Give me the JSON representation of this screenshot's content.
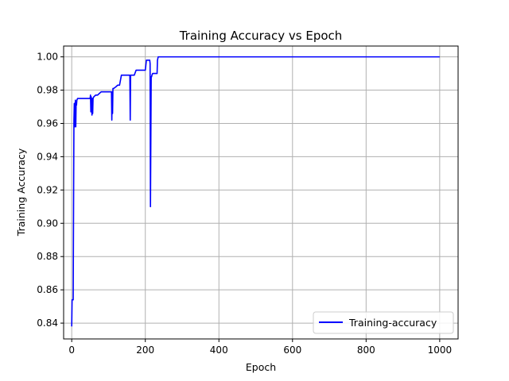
{
  "chart_data": {
    "type": "line",
    "title": "Training Accuracy vs Epoch",
    "xlabel": "Epoch",
    "ylabel": "Training Accuracy",
    "xlim": [
      -22,
      1050
    ],
    "ylim": [
      0.8305,
      1.0065
    ],
    "xticks": [
      0,
      200,
      400,
      600,
      800,
      1000
    ],
    "yticks": [
      0.84,
      0.86,
      0.88,
      0.9,
      0.92,
      0.94,
      0.96,
      0.98,
      1.0
    ],
    "xtick_labels": [
      "0",
      "200",
      "400",
      "600",
      "800",
      "1000"
    ],
    "ytick_labels": [
      "0.84",
      "0.86",
      "0.88",
      "0.90",
      "0.92",
      "0.94",
      "0.96",
      "0.98",
      "1.00"
    ],
    "grid": true,
    "legend_position": "lower-right",
    "series": [
      {
        "name": "Training-accuracy",
        "color": "#0000ff",
        "x": [
          0,
          1,
          2,
          4,
          5,
          6,
          7,
          8,
          9,
          10,
          11,
          12,
          13,
          14,
          16,
          20,
          30,
          40,
          50,
          51,
          52,
          53,
          55,
          56,
          57,
          58,
          60,
          65,
          70,
          80,
          90,
          100,
          105,
          108,
          109,
          110,
          111,
          112,
          113,
          114,
          120,
          125,
          130,
          135,
          140,
          150,
          155,
          158,
          159,
          160,
          161,
          162,
          163,
          170,
          175,
          180,
          190,
          200,
          203,
          205,
          210,
          212,
          213,
          214,
          215,
          216,
          217,
          218,
          220,
          225,
          230,
          232,
          233,
          235,
          240,
          300,
          400,
          500,
          600,
          700,
          800,
          900,
          1000
        ],
        "y": [
          0.838,
          0.854,
          0.854,
          0.854,
          0.91,
          0.962,
          0.972,
          0.958,
          0.969,
          0.974,
          0.958,
          0.972,
          0.971,
          0.974,
          0.975,
          0.975,
          0.975,
          0.975,
          0.975,
          0.977,
          0.967,
          0.976,
          0.965,
          0.975,
          0.966,
          0.975,
          0.976,
          0.977,
          0.977,
          0.979,
          0.979,
          0.979,
          0.979,
          0.979,
          0.962,
          0.979,
          0.966,
          0.981,
          0.981,
          0.981,
          0.982,
          0.983,
          0.983,
          0.989,
          0.989,
          0.989,
          0.989,
          0.989,
          0.962,
          0.989,
          0.989,
          0.989,
          0.989,
          0.989,
          0.992,
          0.992,
          0.992,
          0.992,
          0.998,
          0.998,
          0.998,
          0.998,
          0.996,
          0.91,
          0.95,
          0.988,
          0.988,
          0.989,
          0.99,
          0.99,
          0.99,
          0.99,
          0.998,
          1.0,
          1.0,
          1.0,
          1.0,
          1.0,
          1.0,
          1.0,
          1.0,
          1.0,
          1.0
        ]
      }
    ]
  }
}
